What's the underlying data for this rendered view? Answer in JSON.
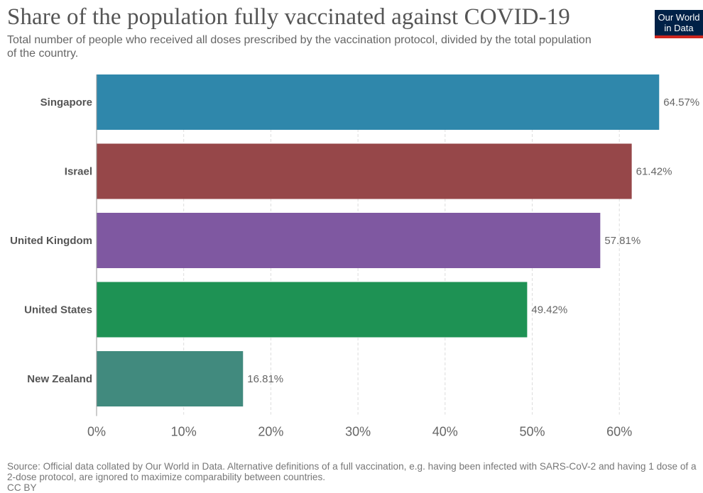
{
  "header": {
    "title": "Share of the population fully vaccinated against COVID-19",
    "subtitle": "Total number of people who received all doses prescribed by the vaccination protocol, divided by the total population of the country.",
    "logo_line1": "Our World",
    "logo_line2": "in Data"
  },
  "footer": {
    "source": "Source: Official data collated by Our World in Data. Alternative definitions of a full vaccination, e.g. having been infected with SARS-CoV-2 and having 1 dose of a 2-dose protocol, are ignored to maximize comparability between countries.",
    "license": "CC BY"
  },
  "chart_data": {
    "type": "bar",
    "orientation": "horizontal",
    "title": "Share of the population fully vaccinated against COVID-19",
    "categories": [
      "Singapore",
      "Israel",
      "United Kingdom",
      "United States",
      "New Zealand"
    ],
    "values": [
      64.57,
      61.42,
      57.81,
      49.42,
      16.81
    ],
    "value_labels": [
      "64.57%",
      "61.42%",
      "57.81%",
      "49.42%",
      "16.81%"
    ],
    "colors": [
      "#2f87ab",
      "#964749",
      "#7f58a1",
      "#1e9254",
      "#418a7e"
    ],
    "xlim": [
      0,
      70
    ],
    "xticks": [
      0,
      10,
      20,
      30,
      40,
      50,
      60
    ],
    "xtick_labels": [
      "0%",
      "10%",
      "20%",
      "30%",
      "40%",
      "50%",
      "60%"
    ],
    "grid": true,
    "legend": "none"
  }
}
